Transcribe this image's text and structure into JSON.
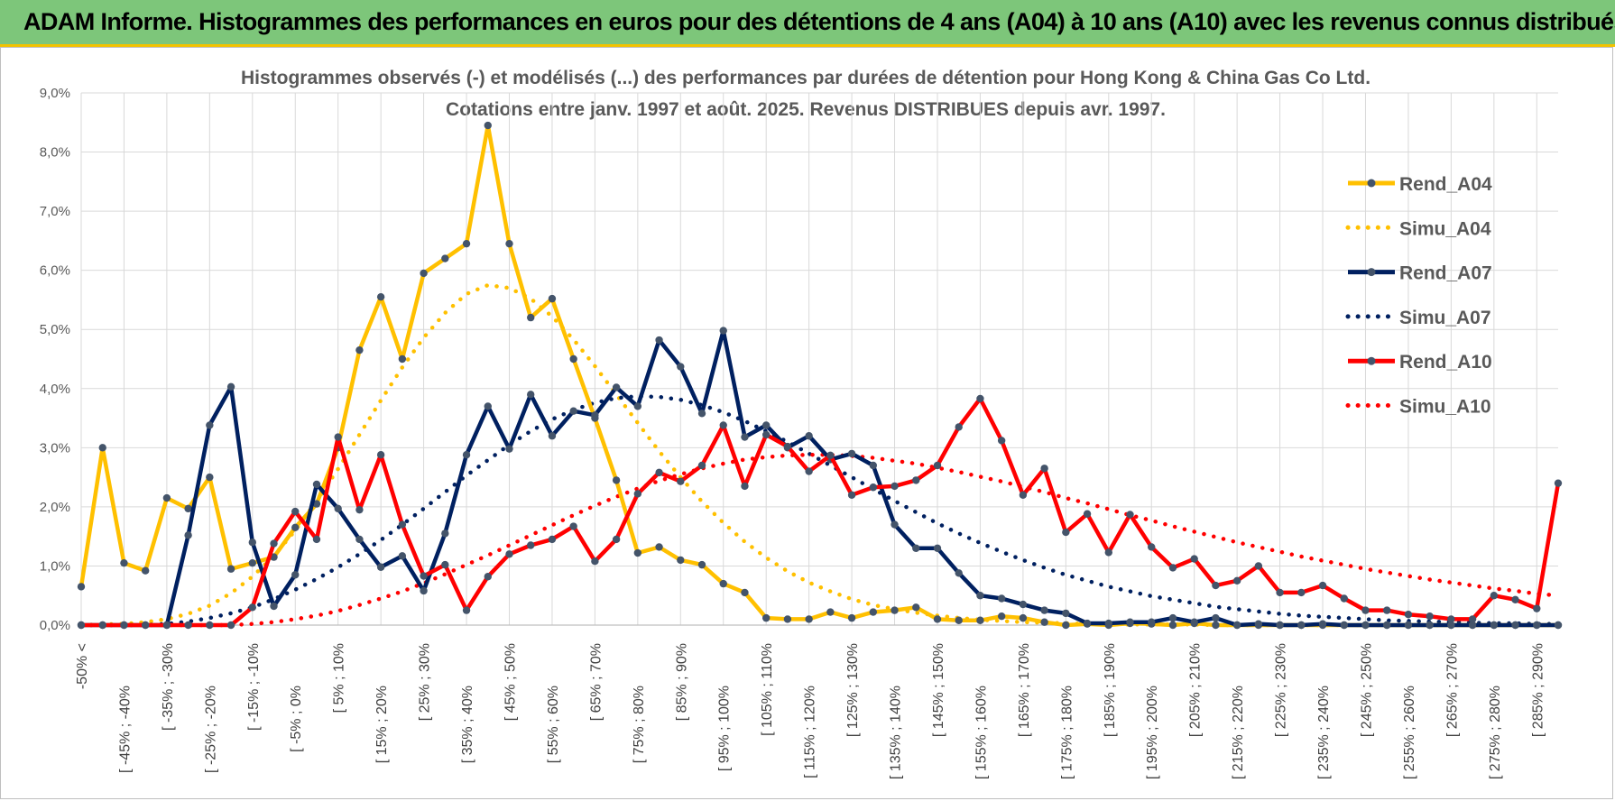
{
  "header": {
    "title": "ADAM Informe. Histogrammes des performances en euros pour des détentions de 4 ans (A04) à 10 ans (A10) avec les revenus connus distribués"
  },
  "chart_data": {
    "type": "line",
    "title": "Histogrammes observés (-) et modélisés (...) des performances par durées de détention pour Hong Kong & China Gas Co Ltd.",
    "subtitle": "Cotations entre janv. 1997 et août. 2025. Revenus DISTRIBUES depuis avr. 1997.",
    "ylim": [
      0,
      9
    ],
    "yticks": [
      "0,0%",
      "1,0%",
      "2,0%",
      "3,0%",
      "4,0%",
      "5,0%",
      "6,0%",
      "7,0%",
      "8,0%",
      "9,0%"
    ],
    "x_tick_labels": [
      "-50% <",
      "[ -45% ; -40%",
      "[ -35% ; -30%",
      "[ -25% ; -20%",
      "[ -15% ; -10%",
      "[ -5% ; 0%",
      "[ 5% ; 10%",
      "[ 15% ; 20%",
      "[ 25% ; 30%",
      "[ 35% ; 40%",
      "[ 45% ; 50%",
      "[ 55% ; 60%",
      "[ 65% ; 70%",
      "[ 75% ; 80%",
      "[ 85% ; 90%",
      "[ 95% ; 100%",
      "[ 105% ; 110%",
      "[ 115% ; 120%",
      "[ 125% ; 130%",
      "[ 135% ; 140%",
      "[ 145% ; 150%",
      "[ 155% ; 160%",
      "[ 165% ; 170%",
      "[ 175% ; 180%",
      "[ 185% ; 190%",
      "[ 195% ; 200%",
      "[ 205% ; 210%",
      "[ 215% ; 220%",
      "[ 225% ; 230%",
      "[ 235% ; 240%",
      "[ 245% ; 250%",
      "[ 255% ; 260%",
      "[ 265% ; 270%",
      "[ 275% ; 280%",
      "[ 285% ; 290%"
    ],
    "grid": true,
    "legend_position": "right",
    "series": [
      {
        "name": "Rend_A04",
        "style": "solid",
        "color": "#ffc000",
        "values": [
          0.65,
          3.0,
          1.05,
          0.92,
          2.15,
          1.97,
          2.5,
          0.95,
          1.05,
          1.15,
          1.65,
          2.05,
          3.0,
          4.65,
          5.55,
          4.5,
          5.95,
          6.2,
          6.45,
          8.45,
          6.45,
          5.2,
          5.52,
          4.5,
          3.5,
          2.45,
          1.22,
          1.32,
          1.1,
          1.02,
          0.7,
          0.55,
          0.12,
          0.1,
          0.1,
          0.22,
          0.12,
          0.22,
          0.25,
          0.3,
          0.1,
          0.08,
          0.08,
          0.15,
          0.12,
          0.05,
          0.0,
          0.02,
          0.0,
          0.03,
          0.02,
          0.0,
          0.03,
          0.0,
          0.0,
          0.0,
          0.0,
          0.0,
          0.0,
          0.0,
          0.0,
          0.0,
          0.0,
          0.0,
          0.0,
          0.0,
          0.0,
          0.0,
          0.0,
          0.0
        ]
      },
      {
        "name": "Simu_A04",
        "style": "dotted",
        "color": "#ffc000",
        "values": [
          0.0,
          0.01,
          0.02,
          0.05,
          0.1,
          0.19,
          0.33,
          0.54,
          0.82,
          1.17,
          1.6,
          2.1,
          2.64,
          3.22,
          3.8,
          4.36,
          4.86,
          5.28,
          5.6,
          5.75,
          5.7,
          5.52,
          5.22,
          4.83,
          4.38,
          3.9,
          3.42,
          2.94,
          2.5,
          2.09,
          1.73,
          1.41,
          1.14,
          0.91,
          0.72,
          0.57,
          0.44,
          0.34,
          0.27,
          0.21,
          0.16,
          0.12,
          0.09,
          0.07,
          0.05,
          0.04,
          0.03,
          0.02,
          0.02,
          0.01,
          0.01,
          0.01,
          0.01,
          0.0,
          0.0,
          0.0,
          0.0,
          0.0,
          0.0,
          0.0,
          0.0,
          0.0,
          0.0,
          0.0,
          0.0,
          0.0,
          0.0,
          0.0,
          0.0,
          0.0
        ]
      },
      {
        "name": "Rend_A07",
        "style": "solid",
        "color": "#002060",
        "values": [
          0.0,
          0.0,
          0.0,
          0.0,
          0.0,
          1.52,
          3.38,
          4.03,
          1.4,
          0.32,
          0.85,
          2.38,
          1.97,
          1.45,
          0.98,
          1.17,
          0.58,
          1.55,
          2.88,
          3.7,
          2.98,
          3.9,
          3.2,
          3.62,
          3.55,
          4.02,
          3.7,
          4.82,
          4.37,
          3.58,
          4.98,
          3.18,
          3.38,
          3.0,
          3.2,
          2.8,
          2.9,
          2.7,
          1.7,
          1.3,
          1.3,
          0.88,
          0.5,
          0.45,
          0.35,
          0.25,
          0.2,
          0.03,
          0.03,
          0.05,
          0.05,
          0.12,
          0.05,
          0.12,
          0.0,
          0.02,
          0.0,
          0.0,
          0.02,
          0.0,
          0.0,
          0.0,
          0.0,
          0.0,
          0.0,
          0.0,
          0.0,
          0.0,
          0.0,
          0.0
        ]
      },
      {
        "name": "Simu_A07",
        "style": "dotted",
        "color": "#002060",
        "values": [
          0.0,
          0.0,
          0.0,
          0.0,
          0.02,
          0.06,
          0.12,
          0.2,
          0.3,
          0.44,
          0.6,
          0.78,
          0.98,
          1.2,
          1.44,
          1.7,
          1.97,
          2.25,
          2.53,
          2.79,
          3.05,
          3.28,
          3.48,
          3.64,
          3.76,
          3.84,
          3.87,
          3.86,
          3.81,
          3.72,
          3.6,
          3.45,
          3.28,
          3.1,
          2.9,
          2.7,
          2.5,
          2.3,
          2.1,
          1.91,
          1.72,
          1.55,
          1.39,
          1.24,
          1.1,
          0.97,
          0.85,
          0.75,
          0.65,
          0.57,
          0.49,
          0.43,
          0.37,
          0.31,
          0.27,
          0.23,
          0.19,
          0.16,
          0.14,
          0.12,
          0.1,
          0.08,
          0.07,
          0.06,
          0.05,
          0.04,
          0.03,
          0.03,
          0.02,
          0.02
        ]
      },
      {
        "name": "Rend_A10",
        "style": "solid",
        "color": "#ff0000",
        "values": [
          0.0,
          0.0,
          0.0,
          0.0,
          0.0,
          0.0,
          0.0,
          0.0,
          0.3,
          1.38,
          1.92,
          1.45,
          3.18,
          1.95,
          2.88,
          1.7,
          0.83,
          1.02,
          0.25,
          0.82,
          1.2,
          1.35,
          1.45,
          1.67,
          1.08,
          1.45,
          2.22,
          2.58,
          2.43,
          2.7,
          3.38,
          2.35,
          3.22,
          3.02,
          2.6,
          2.87,
          2.2,
          2.33,
          2.35,
          2.45,
          2.7,
          3.35,
          3.83,
          3.12,
          2.2,
          2.65,
          1.57,
          1.88,
          1.23,
          1.87,
          1.32,
          0.97,
          1.12,
          0.67,
          0.75,
          1.0,
          0.55,
          0.55,
          0.67,
          0.45,
          0.25,
          0.25,
          0.18,
          0.15,
          0.1,
          0.1,
          0.5,
          0.43,
          0.28,
          2.4
        ]
      },
      {
        "name": "Simu_A10",
        "style": "dotted",
        "color": "#ff0000",
        "values": [
          0.0,
          0.0,
          0.0,
          0.0,
          0.0,
          0.0,
          0.0,
          0.0,
          0.02,
          0.05,
          0.1,
          0.16,
          0.24,
          0.34,
          0.45,
          0.57,
          0.71,
          0.86,
          1.02,
          1.18,
          1.35,
          1.52,
          1.69,
          1.86,
          2.02,
          2.17,
          2.31,
          2.44,
          2.55,
          2.65,
          2.73,
          2.8,
          2.84,
          2.87,
          2.88,
          2.88,
          2.86,
          2.83,
          2.78,
          2.73,
          2.66,
          2.59,
          2.51,
          2.43,
          2.34,
          2.25,
          2.15,
          2.06,
          1.96,
          1.86,
          1.77,
          1.67,
          1.58,
          1.49,
          1.4,
          1.32,
          1.24,
          1.16,
          1.09,
          1.02,
          0.95,
          0.89,
          0.83,
          0.77,
          0.72,
          0.67,
          0.62,
          0.58,
          0.53,
          0.5
        ]
      }
    ]
  }
}
